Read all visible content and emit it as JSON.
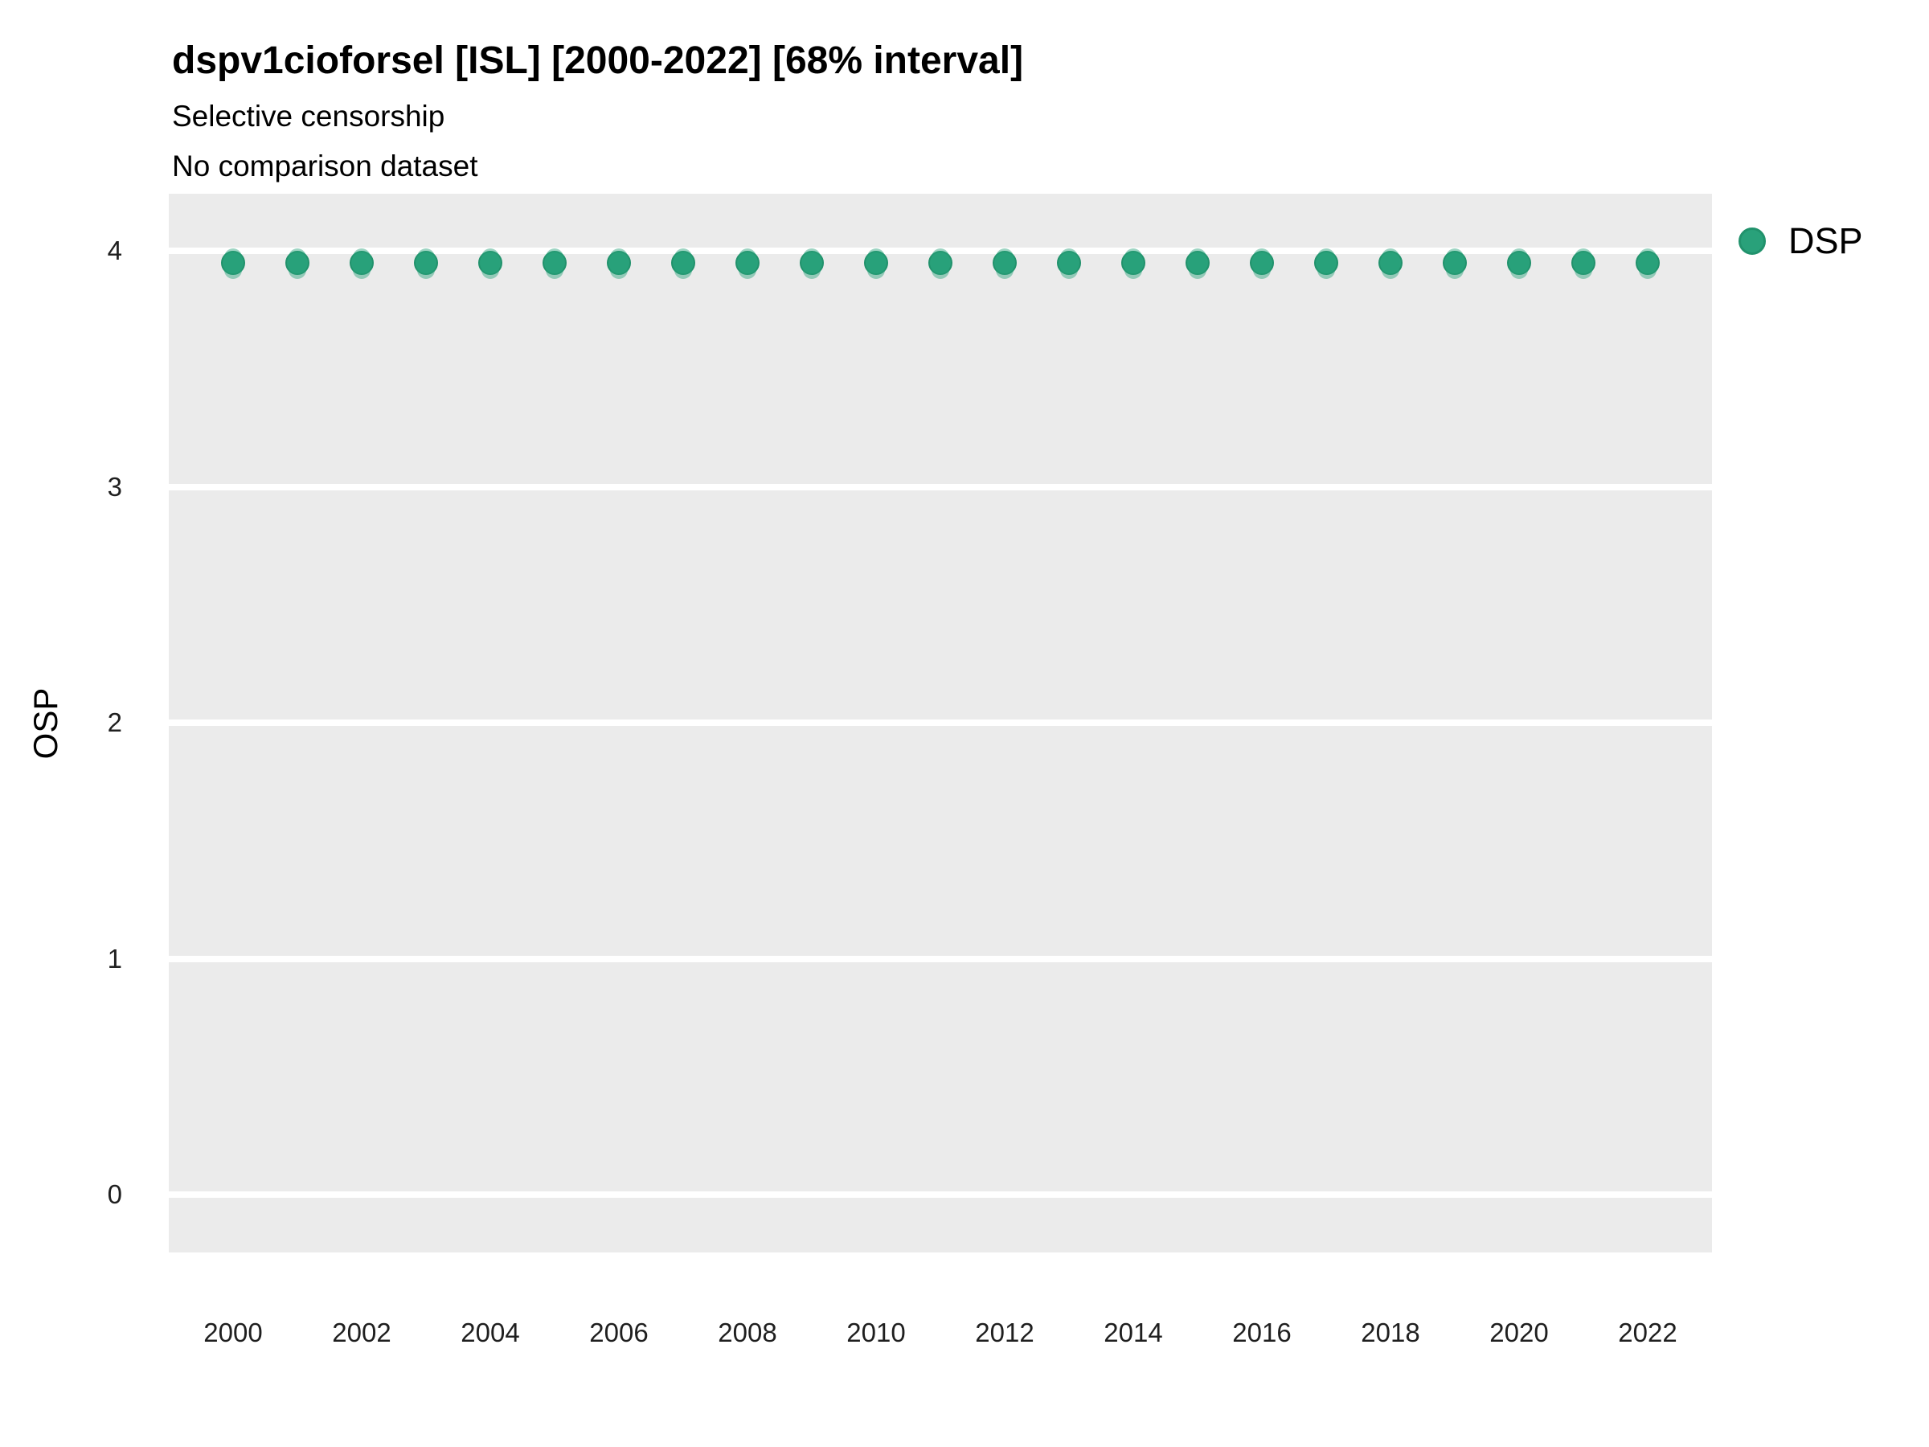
{
  "header": {
    "title": "dspv1cioforsel [ISL] [2000-2022] [68% interval]",
    "subtitle_line1": "Selective censorship",
    "subtitle_line2": "No comparison dataset"
  },
  "legend": {
    "label": "DSP"
  },
  "axes": {
    "y_title": "OSP",
    "y_tick_labels": [
      "4",
      "3",
      "2",
      "1",
      "0"
    ],
    "x_tick_labels": [
      "2000",
      "2002",
      "2004",
      "2006",
      "2008",
      "2010",
      "2012",
      "2014",
      "2016",
      "2018",
      "2020",
      "2022"
    ]
  },
  "style": {
    "panel_bg": "#ebebeb",
    "gridline_color": "#ffffff",
    "marker_color": "#29a17a",
    "marker_ring_color": "#21926c",
    "interval_color": "rgba(41,161,122,0.45)",
    "text_color": "#000000",
    "tick_label_color": "#1f1f1f"
  },
  "chart_data": {
    "type": "scatter",
    "title": "dspv1cioforsel [ISL] [2000-2022] [68% interval]",
    "subtitle": [
      "Selective censorship",
      "No comparison dataset"
    ],
    "xlabel": "",
    "ylabel": "OSP",
    "legend_position": "right",
    "grid": "horizontal-major-only",
    "xlim": [
      1999,
      2023
    ],
    "ylim": [
      -0.245,
      4.242
    ],
    "x_ticks": [
      2000,
      2002,
      2004,
      2006,
      2008,
      2010,
      2012,
      2014,
      2016,
      2018,
      2020,
      2022
    ],
    "y_ticks": [
      0,
      1,
      2,
      3,
      4
    ],
    "series": [
      {
        "name": "DSP",
        "interval_label": "68% interval",
        "x": [
          2000,
          2001,
          2002,
          2003,
          2004,
          2005,
          2006,
          2007,
          2008,
          2009,
          2010,
          2011,
          2012,
          2013,
          2014,
          2015,
          2016,
          2017,
          2018,
          2019,
          2020,
          2021,
          2022
        ],
        "y": [
          3.95,
          3.95,
          3.95,
          3.95,
          3.95,
          3.95,
          3.95,
          3.95,
          3.95,
          3.95,
          3.95,
          3.95,
          3.95,
          3.95,
          3.95,
          3.95,
          3.95,
          3.95,
          3.95,
          3.95,
          3.95,
          3.95,
          3.95
        ],
        "y_lo": [
          3.88,
          3.88,
          3.88,
          3.88,
          3.88,
          3.88,
          3.88,
          3.88,
          3.88,
          3.88,
          3.88,
          3.88,
          3.88,
          3.88,
          3.88,
          3.88,
          3.88,
          3.88,
          3.88,
          3.88,
          3.88,
          3.88,
          3.88
        ],
        "y_hi": [
          4.01,
          4.01,
          4.01,
          4.01,
          4.01,
          4.01,
          4.01,
          4.01,
          4.01,
          4.01,
          4.01,
          4.01,
          4.01,
          4.01,
          4.01,
          4.01,
          4.01,
          4.01,
          4.01,
          4.01,
          4.01,
          4.01,
          4.01
        ]
      }
    ]
  }
}
